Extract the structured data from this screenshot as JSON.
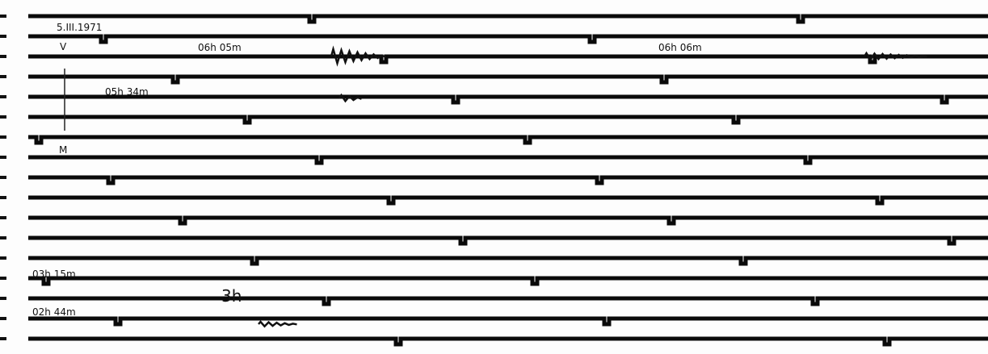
{
  "header": {
    "date": "5.III.1971",
    "component": "V"
  },
  "annotations": [
    {
      "label": "06h 05m"
    },
    {
      "label": "06h 06m"
    },
    {
      "label": "05h 34m"
    },
    {
      "label": "M"
    },
    {
      "label": "03h 15m"
    },
    {
      "label": "3h"
    },
    {
      "label": "02h 44m"
    }
  ]
}
